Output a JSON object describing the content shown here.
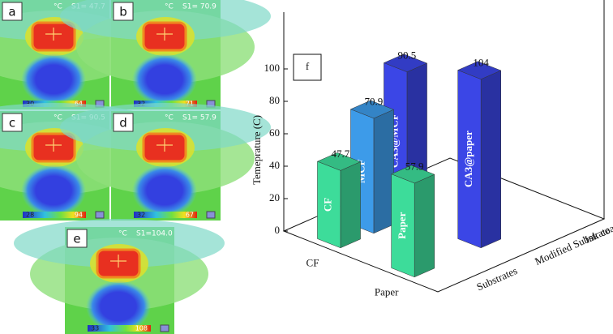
{
  "panels": [
    {
      "letter": "a",
      "unit": "°C",
      "spot": "S1= 47.7",
      "scale_min": "30",
      "scale_max": "64"
    },
    {
      "letter": "b",
      "unit": "°C",
      "spot": "S1= 70.9",
      "scale_min": "32",
      "scale_max": "71"
    },
    {
      "letter": "c",
      "unit": "°C",
      "spot": "S1= 90.5",
      "scale_min": "28",
      "scale_max": "94"
    },
    {
      "letter": "d",
      "unit": "°C",
      "spot": "S1= 57.9",
      "scale_min": "32",
      "scale_max": "67"
    },
    {
      "letter": "e",
      "unit": "°C",
      "spot": "S1=104.0",
      "scale_min": "33",
      "scale_max": "108"
    }
  ],
  "chart_data": {
    "type": "bar3d",
    "label": "f",
    "y_label": "Temeprature (C)",
    "categories": [
      "CF",
      "Paper"
    ],
    "series": [
      {
        "name": "Substrates",
        "color": "#3ddc9a",
        "values": [
          47.7,
          57.9
        ],
        "bar_labels": [
          "CF",
          "Paper"
        ]
      },
      {
        "name": "Modified Substrate",
        "color": "#3d9be9",
        "values": [
          70.9,
          null
        ],
        "bar_labels": [
          "MCF",
          null
        ]
      },
      {
        "name": "Ink coated Substrates",
        "color": "#3b46e6",
        "values": [
          90.5,
          104
        ],
        "bar_labels": [
          "CA3@MCF",
          "CA3@paper"
        ]
      }
    ],
    "ylim": [
      0,
      135
    ],
    "yticks": [
      0,
      20,
      40,
      60,
      80,
      100
    ]
  }
}
